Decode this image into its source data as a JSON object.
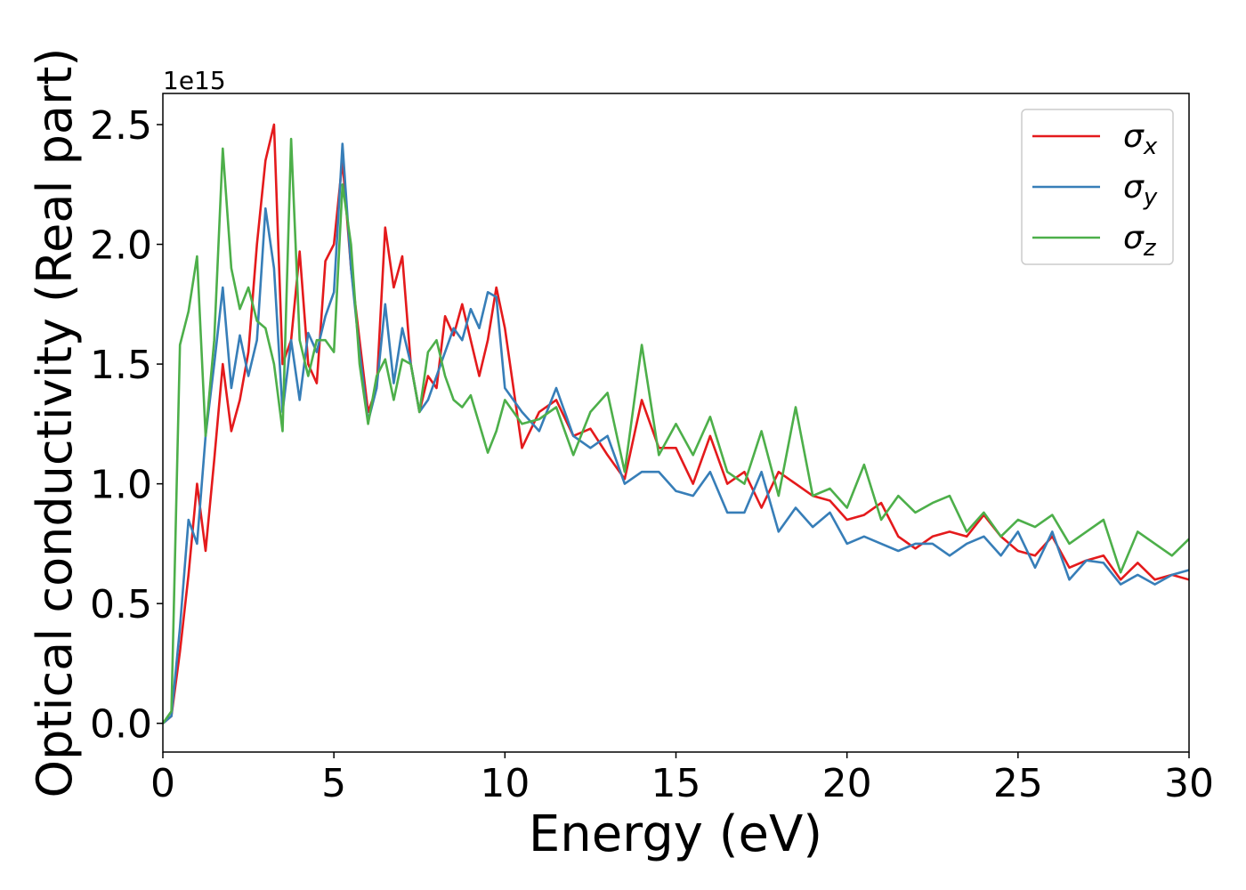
{
  "chart_data": {
    "type": "line",
    "xlabel": "Energy (eV)",
    "ylabel": "Optical conductivity (Real part)",
    "y_offset_label": "1e15",
    "xlim": [
      0,
      30
    ],
    "ylim": [
      -0.12,
      2.63
    ],
    "xticks": [
      0,
      5,
      10,
      15,
      20,
      25,
      30
    ],
    "yticks": [
      {
        "value": 0,
        "label": "0.0"
      },
      {
        "value": 0.5,
        "label": "0.5"
      },
      {
        "value": 1,
        "label": "1.0"
      },
      {
        "value": 1.5,
        "label": "1.5"
      },
      {
        "value": 2,
        "label": "2.0"
      },
      {
        "value": 2.5,
        "label": "2.5"
      }
    ],
    "legend": "upper right",
    "x": [
      0,
      0.25,
      0.5,
      0.75,
      1,
      1.25,
      1.5,
      1.75,
      2,
      2.25,
      2.5,
      2.75,
      3,
      3.25,
      3.5,
      3.75,
      4,
      4.25,
      4.5,
      4.75,
      5,
      5.25,
      5.5,
      5.75,
      6,
      6.25,
      6.5,
      6.75,
      7,
      7.25,
      7.5,
      7.75,
      8,
      8.25,
      8.5,
      8.75,
      9,
      9.25,
      9.5,
      9.75,
      10,
      10.5,
      11,
      11.5,
      12,
      12.5,
      13,
      13.5,
      14,
      14.5,
      15,
      15.5,
      16,
      16.5,
      17,
      17.5,
      18,
      18.5,
      19,
      19.5,
      20,
      20.5,
      21,
      21.5,
      22,
      22.5,
      23,
      23.5,
      24,
      24.5,
      25,
      25.5,
      26,
      26.5,
      27,
      27.5,
      28,
      28.5,
      29,
      29.5,
      30
    ],
    "series": [
      {
        "name": "σx",
        "color": "#e41a1c",
        "values": [
          0,
          0.03,
          0.3,
          0.62,
          1.0,
          0.72,
          1.1,
          1.5,
          1.22,
          1.35,
          1.55,
          2.0,
          2.35,
          2.5,
          1.5,
          1.6,
          1.97,
          1.5,
          1.42,
          1.93,
          2.0,
          2.35,
          1.9,
          1.6,
          1.3,
          1.4,
          2.07,
          1.82,
          1.95,
          1.5,
          1.3,
          1.45,
          1.4,
          1.7,
          1.62,
          1.75,
          1.6,
          1.45,
          1.6,
          1.82,
          1.65,
          1.15,
          1.3,
          1.35,
          1.2,
          1.23,
          1.12,
          1.02,
          1.35,
          1.15,
          1.15,
          1.0,
          1.2,
          1.0,
          1.05,
          0.9,
          1.05,
          1.0,
          0.95,
          0.93,
          0.85,
          0.87,
          0.92,
          0.78,
          0.73,
          0.78,
          0.8,
          0.78,
          0.87,
          0.78,
          0.72,
          0.7,
          0.78,
          0.65,
          0.68,
          0.7,
          0.6,
          0.67,
          0.6,
          0.62,
          0.6
        ]
      },
      {
        "name": "σy",
        "color": "#377eb8",
        "values": [
          0,
          0.03,
          0.4,
          0.85,
          0.75,
          1.2,
          1.5,
          1.82,
          1.4,
          1.62,
          1.45,
          1.6,
          2.15,
          1.9,
          1.3,
          1.6,
          1.35,
          1.63,
          1.55,
          1.7,
          1.8,
          2.42,
          1.9,
          1.55,
          1.26,
          1.4,
          1.75,
          1.42,
          1.65,
          1.5,
          1.3,
          1.35,
          1.45,
          1.55,
          1.65,
          1.6,
          1.73,
          1.65,
          1.8,
          1.78,
          1.4,
          1.3,
          1.22,
          1.4,
          1.2,
          1.15,
          1.2,
          1.0,
          1.05,
          1.05,
          0.97,
          0.95,
          1.05,
          0.88,
          0.88,
          1.05,
          0.8,
          0.9,
          0.82,
          0.88,
          0.75,
          0.78,
          0.75,
          0.72,
          0.75,
          0.75,
          0.7,
          0.75,
          0.78,
          0.7,
          0.8,
          0.65,
          0.8,
          0.6,
          0.68,
          0.67,
          0.58,
          0.62,
          0.58,
          0.62,
          0.64
        ]
      },
      {
        "name": "σz",
        "color": "#4daf4a",
        "values": [
          0,
          0.05,
          1.58,
          1.72,
          1.95,
          1.2,
          1.6,
          2.4,
          1.9,
          1.73,
          1.82,
          1.68,
          1.65,
          1.5,
          1.22,
          2.44,
          1.6,
          1.45,
          1.6,
          1.6,
          1.55,
          2.25,
          2.0,
          1.5,
          1.25,
          1.45,
          1.52,
          1.35,
          1.52,
          1.5,
          1.3,
          1.55,
          1.6,
          1.45,
          1.35,
          1.32,
          1.37,
          1.25,
          1.13,
          1.22,
          1.35,
          1.25,
          1.27,
          1.32,
          1.12,
          1.3,
          1.38,
          1.05,
          1.58,
          1.12,
          1.25,
          1.12,
          1.28,
          1.05,
          1.0,
          1.22,
          0.95,
          1.32,
          0.95,
          0.98,
          0.9,
          1.08,
          0.85,
          0.95,
          0.88,
          0.92,
          0.95,
          0.8,
          0.88,
          0.78,
          0.85,
          0.82,
          0.87,
          0.75,
          0.8,
          0.85,
          0.63,
          0.8,
          0.75,
          0.7,
          0.77
        ]
      }
    ]
  }
}
